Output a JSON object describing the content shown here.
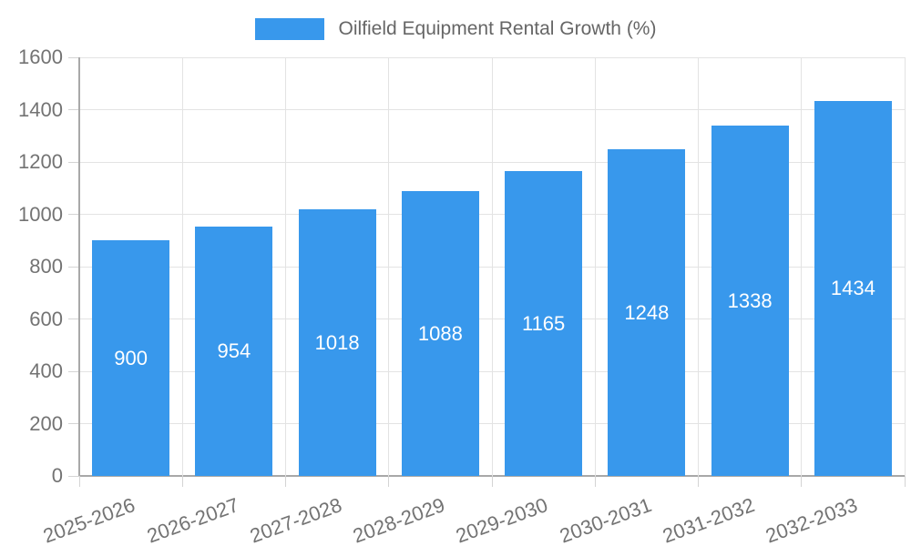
{
  "chart_data": {
    "type": "bar",
    "title": "Oilfield Equipment Rental Growth (%)",
    "categories": [
      "2025-2026",
      "2026-2027",
      "2027-2028",
      "2028-2029",
      "2029-2030",
      "2030-2031",
      "2031-2032",
      "2032-2033"
    ],
    "values": [
      900,
      954,
      1018,
      1088,
      1165,
      1248,
      1338,
      1434
    ],
    "xlabel": "",
    "ylabel": "",
    "ylim": [
      0,
      1600
    ],
    "yticks": [
      0,
      200,
      400,
      600,
      800,
      1000,
      1200,
      1400,
      1600
    ],
    "grid": true,
    "legend_position": "top",
    "colors": {
      "bar": "#3898ec",
      "value_label": "#ffffff",
      "axis_text": "#737373",
      "legend_text": "#666666",
      "grid_line": "#e3e3e3",
      "axis_line": "#a8a8a8",
      "tick_mark": "#d4d4d4"
    }
  }
}
